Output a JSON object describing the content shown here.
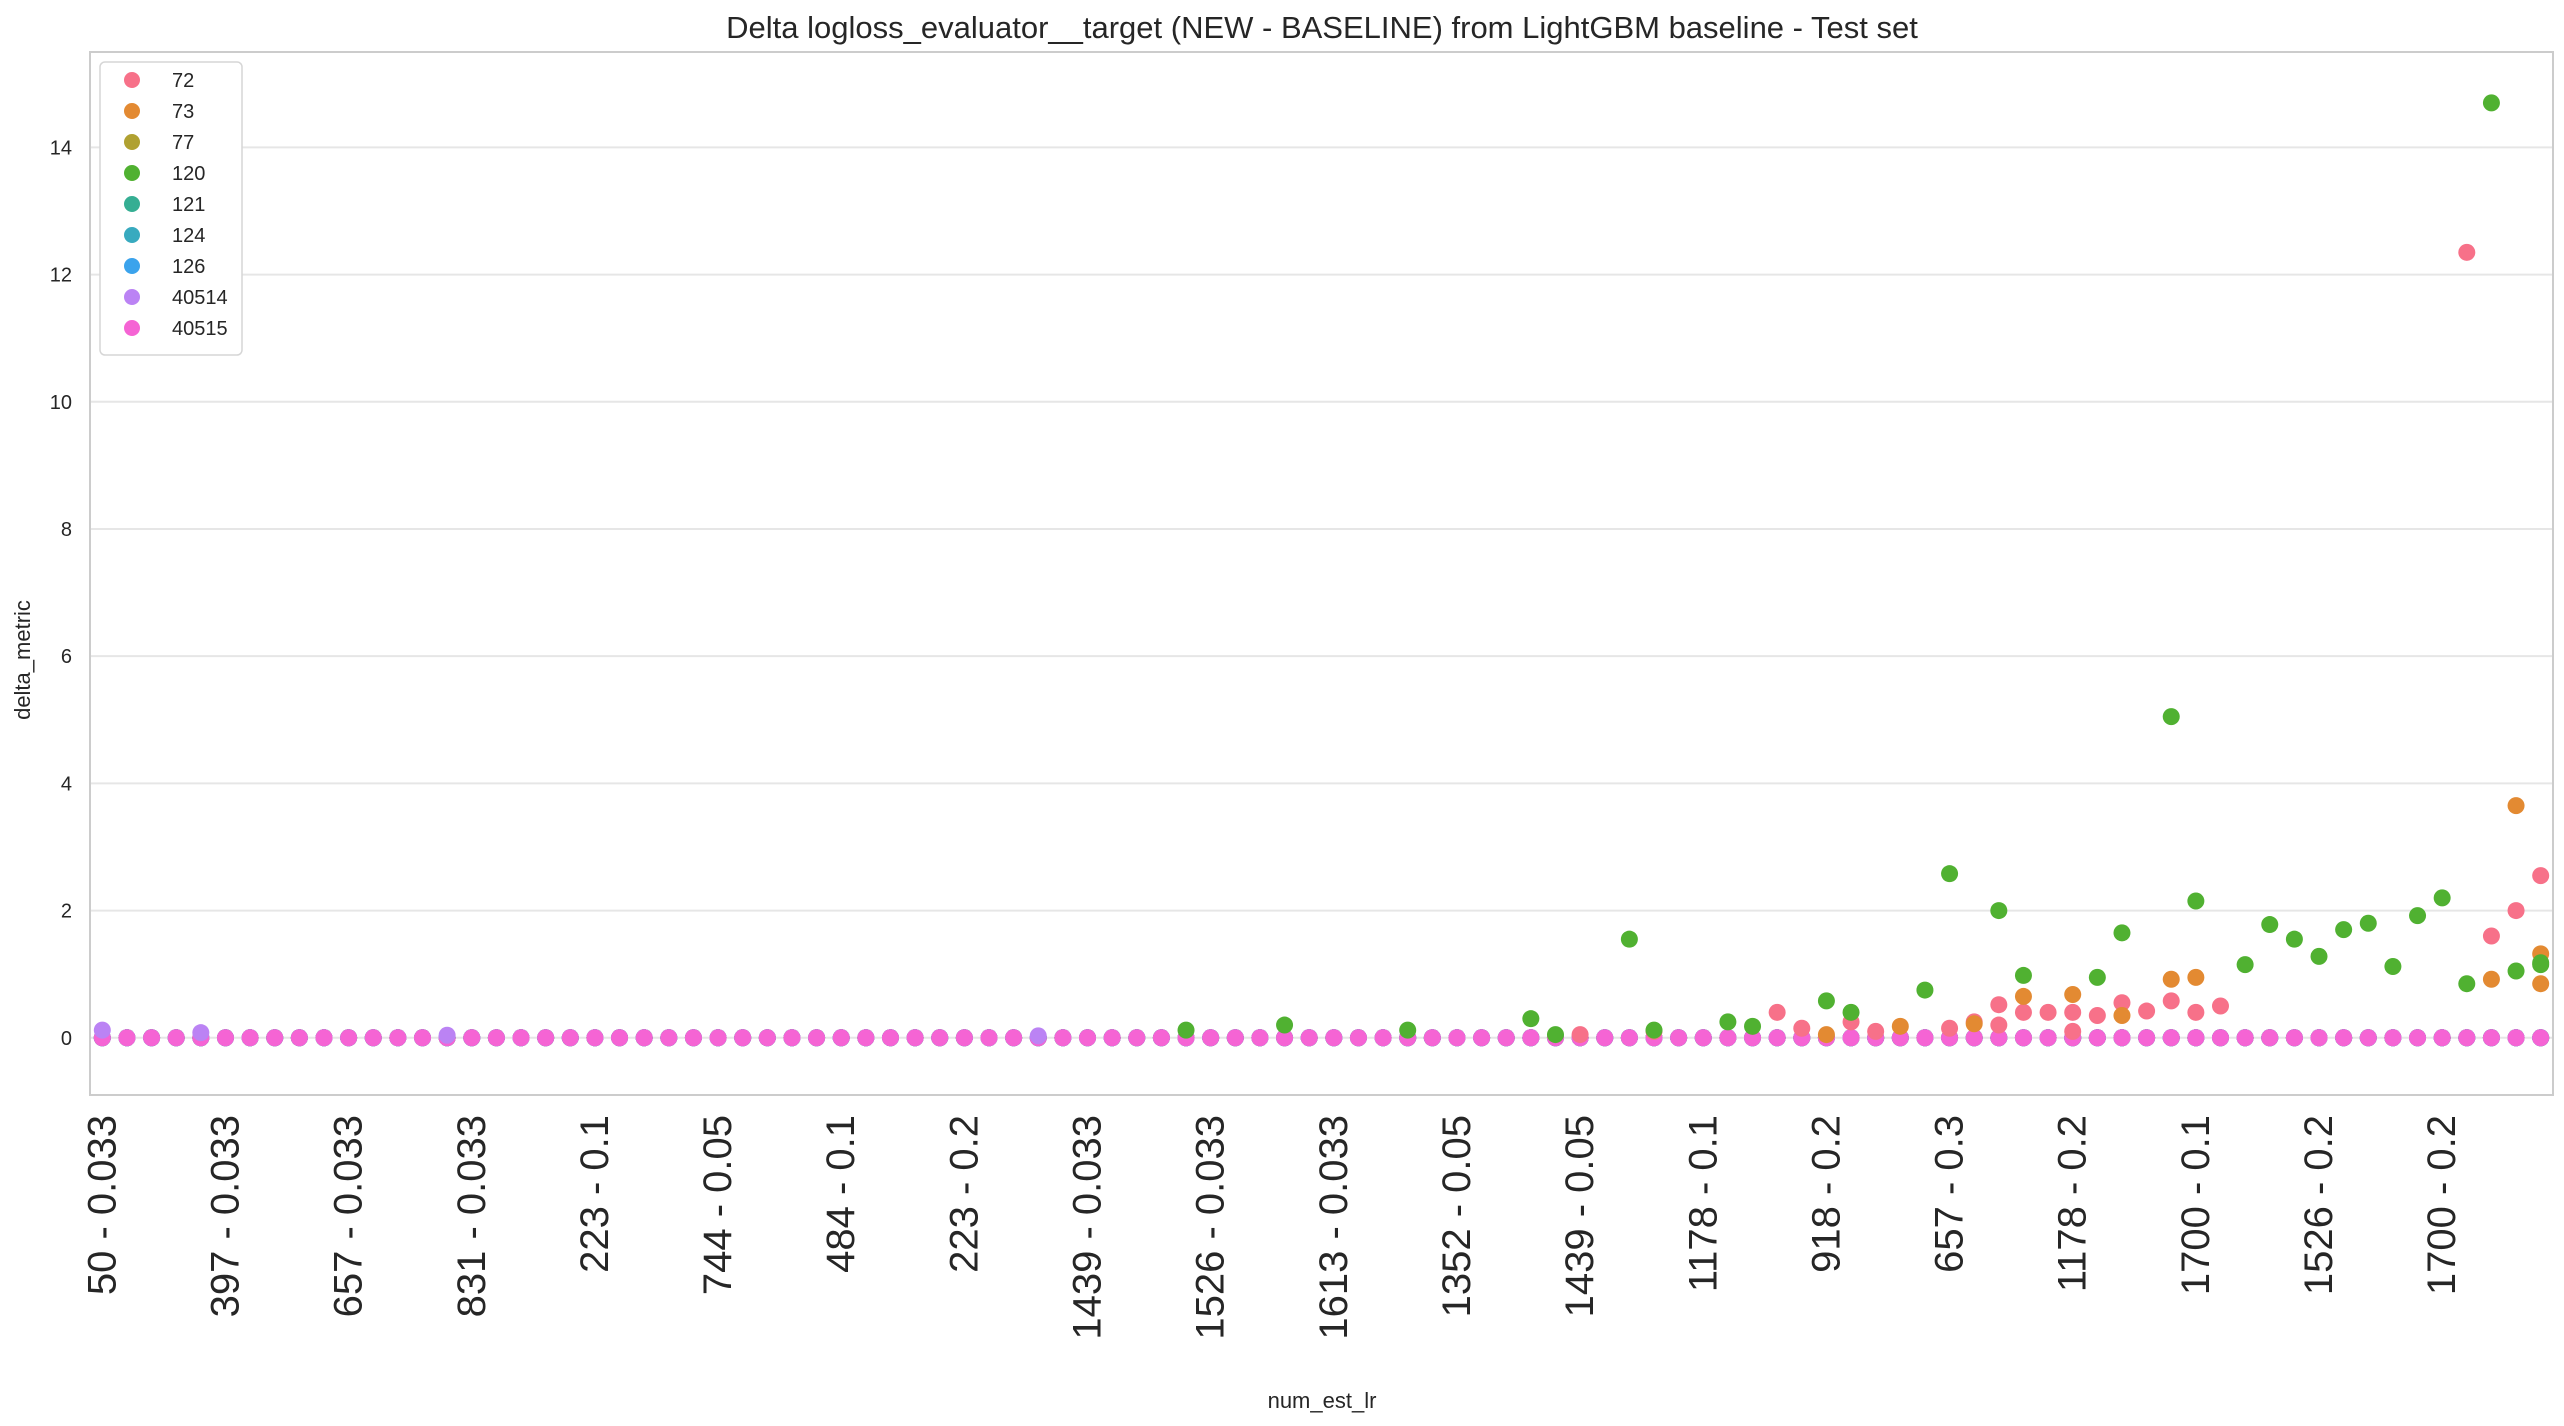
{
  "chart_data": {
    "type": "scatter",
    "title": "Delta logloss_evaluator__target (NEW - BASELINE) from LightGBM baseline - Test set",
    "xlabel": "num_est_lr",
    "ylabel": "delta_metric",
    "ylim": [
      -0.9,
      15.5
    ],
    "yticks": [
      0,
      2,
      4,
      6,
      8,
      10,
      12,
      14
    ],
    "grid": "y",
    "legend_position": "top-left",
    "n_categories": 100,
    "xtick_every": 5,
    "xtick_labels": [
      "50 - 0.033",
      "397 - 0.033",
      "657 - 0.033",
      "831 - 0.033",
      "223 - 0.1",
      "744 - 0.05",
      "484 - 0.1",
      "223 - 0.2",
      "1439 - 0.033",
      "1526 - 0.033",
      "1613 - 0.033",
      "1352 - 0.05",
      "1439 - 0.05",
      "1178 - 0.1",
      "918 - 0.2",
      "657 - 0.3",
      "1178 - 0.2",
      "1700 - 0.1",
      "1526 - 0.2",
      "1700 - 0.2"
    ],
    "series": [
      {
        "name": "72",
        "color": "#f77189",
        "baseline": 0.0,
        "points": [
          [
            77,
            0.52
          ],
          [
            78,
            0.4
          ],
          [
            79,
            0.4
          ],
          [
            80,
            0.4
          ],
          [
            81,
            0.35
          ],
          [
            82,
            0.55
          ],
          [
            83,
            0.42
          ],
          [
            84,
            0.58
          ],
          [
            85,
            0.4
          ],
          [
            86,
            0.5
          ],
          [
            96,
            12.35
          ],
          [
            97,
            1.6
          ],
          [
            98,
            2.0
          ],
          [
            99,
            2.55
          ],
          [
            76,
            0.25
          ],
          [
            77,
            0.2
          ],
          [
            80,
            0.1
          ],
          [
            72,
            0.1
          ],
          [
            68,
            0.4
          ],
          [
            69,
            0.15
          ],
          [
            71,
            0.25
          ],
          [
            75,
            0.15
          ],
          [
            63,
            0.1
          ],
          [
            60,
            0.05
          ]
        ]
      },
      {
        "name": "73",
        "color": "#e38a32",
        "baseline": 0.0,
        "points": [
          [
            78,
            0.65
          ],
          [
            80,
            0.68
          ],
          [
            82,
            0.35
          ],
          [
            84,
            0.92
          ],
          [
            85,
            0.95
          ],
          [
            97,
            0.92
          ],
          [
            98,
            3.65
          ],
          [
            99,
            0.85
          ],
          [
            100,
            1.32
          ],
          [
            76,
            0.22
          ],
          [
            73,
            0.18
          ],
          [
            70,
            0.05
          ]
        ]
      },
      {
        "name": "77",
        "color": "#b0a131",
        "baseline": 0.0,
        "points": []
      },
      {
        "name": "120",
        "color": "#50b131",
        "baseline": 0.0,
        "points": [
          [
            44,
            0.12
          ],
          [
            48,
            0.2
          ],
          [
            53,
            0.12
          ],
          [
            58,
            0.3
          ],
          [
            59,
            0.05
          ],
          [
            62,
            1.55
          ],
          [
            63,
            0.12
          ],
          [
            66,
            0.25
          ],
          [
            67,
            0.18
          ],
          [
            70,
            0.58
          ],
          [
            71,
            0.4
          ],
          [
            74,
            0.75
          ],
          [
            75,
            2.58
          ],
          [
            77,
            2.0
          ],
          [
            78,
            0.98
          ],
          [
            81,
            0.95
          ],
          [
            82,
            1.65
          ],
          [
            84,
            5.05
          ],
          [
            85,
            2.15
          ],
          [
            87,
            1.15
          ],
          [
            88,
            1.78
          ],
          [
            89,
            1.55
          ],
          [
            90,
            1.28
          ],
          [
            91,
            1.7
          ],
          [
            92,
            1.8
          ],
          [
            93,
            1.12
          ],
          [
            94,
            1.92
          ],
          [
            95,
            2.2
          ],
          [
            96,
            0.85
          ],
          [
            97,
            14.7
          ],
          [
            98,
            1.05
          ],
          [
            99,
            1.15
          ],
          [
            100,
            1.18
          ]
        ]
      },
      {
        "name": "121",
        "color": "#35ae93",
        "baseline": 0.0,
        "points": []
      },
      {
        "name": "124",
        "color": "#38aabf",
        "baseline": 0.0,
        "points": []
      },
      {
        "name": "126",
        "color": "#3ba3ec",
        "baseline": 0.0,
        "points": []
      },
      {
        "name": "40514",
        "color": "#bb83f4",
        "baseline": 0.0,
        "points": [
          [
            0,
            0.12
          ],
          [
            4,
            0.08
          ],
          [
            14,
            0.04
          ],
          [
            38,
            0.03
          ]
        ]
      },
      {
        "name": "40515",
        "color": "#f564d4",
        "baseline": 0.0,
        "points": []
      }
    ]
  }
}
